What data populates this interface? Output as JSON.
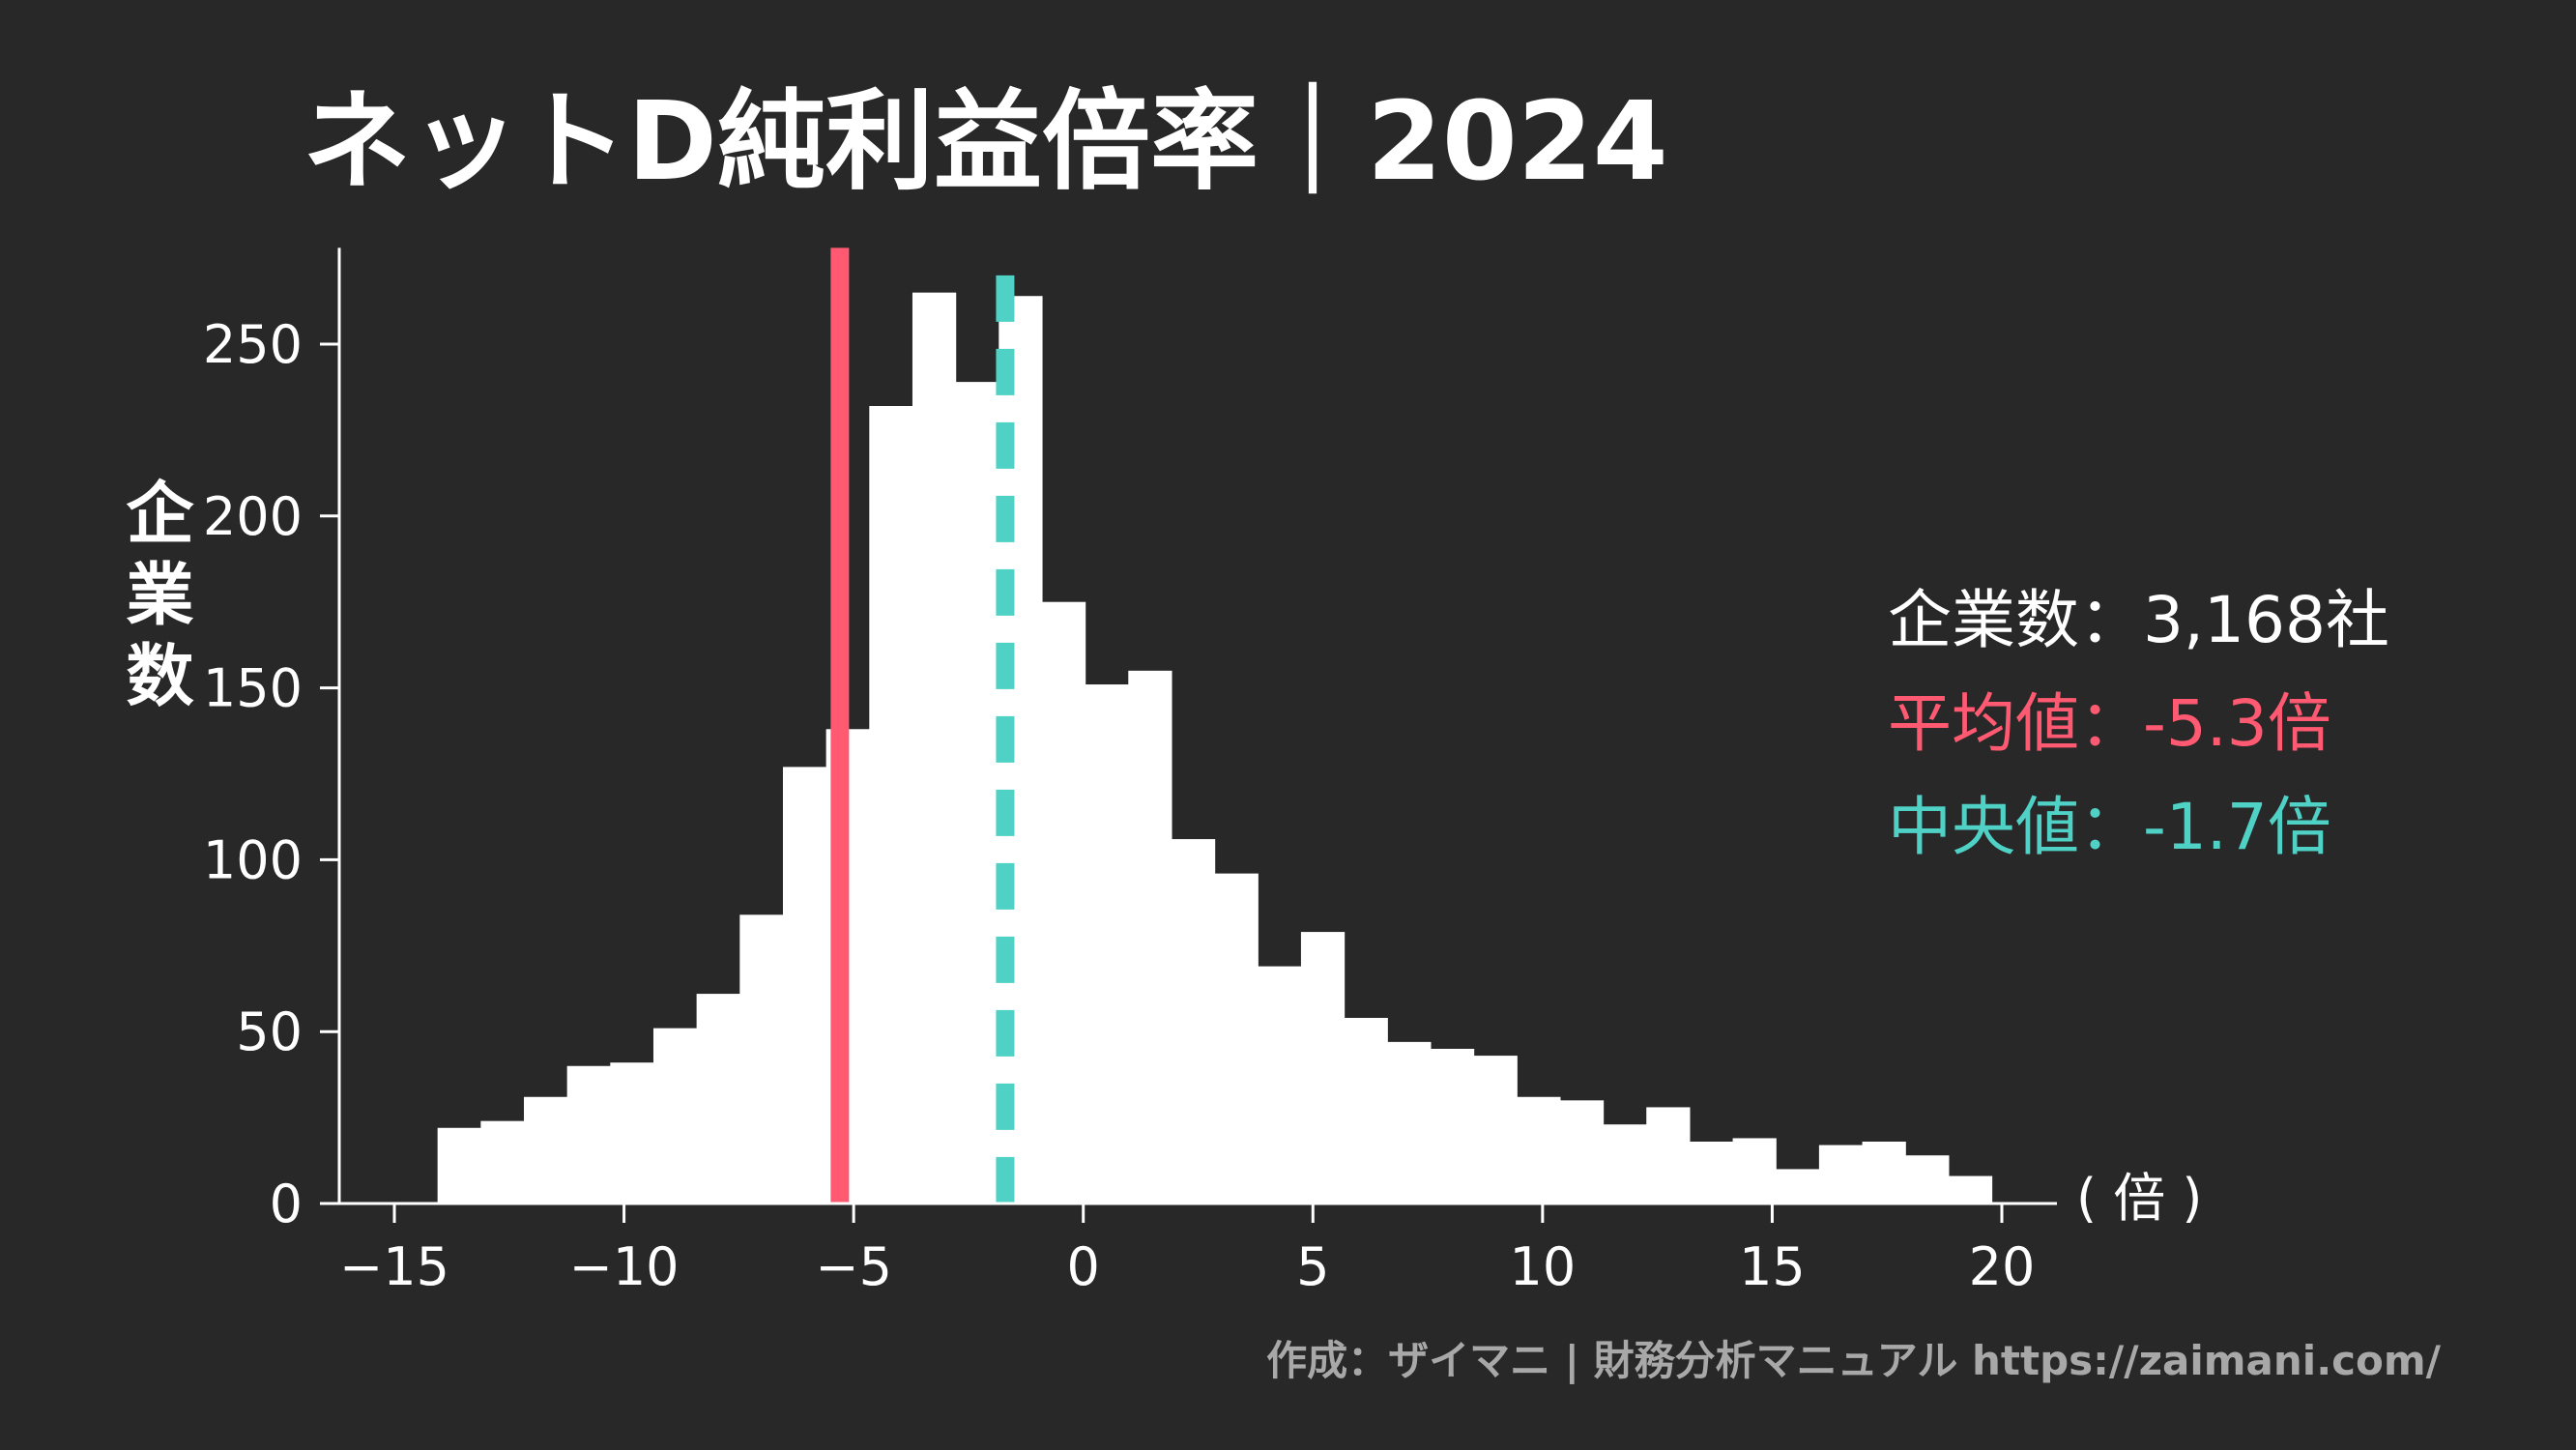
{
  "colors": {
    "background": "#282828",
    "foreground": "#ffffff",
    "mean": "#ff5a72",
    "median": "#4fd1c5",
    "credit": "#a8a8a8"
  },
  "chart_data": {
    "type": "bar",
    "title": "ネットD純利益倍率｜2024",
    "xlabel": "( 倍 )",
    "ylabel": "企業数",
    "xlim": [
      -16.2,
      21.2
    ],
    "ylim": [
      0,
      278
    ],
    "xticks": [
      -15,
      -10,
      -5,
      0,
      5,
      10,
      15,
      20
    ],
    "xtick_labels": [
      "−15",
      "−10",
      "−5",
      "0",
      "5",
      "10",
      "15",
      "20"
    ],
    "yticks": [
      0,
      50,
      100,
      150,
      200,
      250
    ],
    "ytick_labels": [
      "0",
      "50",
      "100",
      "150",
      "200",
      "250"
    ],
    "bin_start": -15,
    "bin_width": 0.94,
    "values": [
      0,
      22,
      24,
      31,
      40,
      41,
      51,
      61,
      84,
      127,
      138,
      232,
      265,
      239,
      264,
      175,
      151,
      155,
      106,
      96,
      69,
      79,
      54,
      47,
      45,
      43,
      31,
      30,
      23,
      28,
      18,
      19,
      10,
      17,
      18,
      14,
      8
    ],
    "grid": false,
    "mean": -5.3,
    "median": -1.7,
    "stats": {
      "count_label": "企業数：3,168社",
      "mean_label": "平均値：-5.3倍",
      "median_label": "中央値：-1.7倍"
    }
  },
  "credit": "作成：ザイマニ | 財務分析マニュアル https://zaimani.com/"
}
